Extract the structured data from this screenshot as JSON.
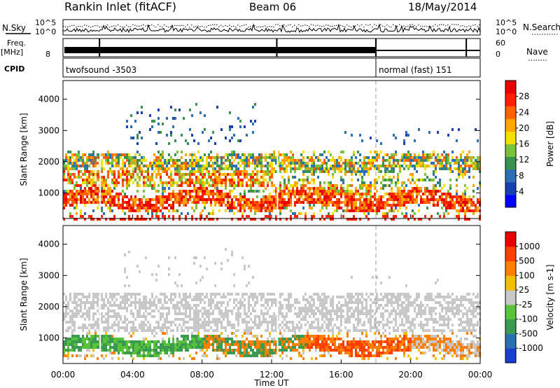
{
  "header": {
    "station": "Rankin Inlet (fitACF)",
    "beam": "Beam 06",
    "date": "18/May/2014"
  },
  "left_labels": {
    "nsky": "N.Sky",
    "freq_top": "Freq.",
    "freq_unit": "[MHz]",
    "cpid": "CPID"
  },
  "right_labels": {
    "nsearch": "N.Search",
    "nave": "Nave"
  },
  "noise_axis": {
    "left_top": "10^5",
    "left_bottom": "10^0",
    "right_top": "10^5",
    "right_bottom": "10^0"
  },
  "freq_axis": {
    "left_tick": "8",
    "right_top": "60",
    "right_bottom": "0"
  },
  "cpid_blocks": [
    {
      "label": "twofsound -3503",
      "start_hour": 0,
      "end_hour": 18
    },
    {
      "label": "normal (fast) 151",
      "start_hour": 18,
      "end_hour": 24
    }
  ],
  "chart_data": [
    {
      "type": "heatmap",
      "name": "power",
      "ylabel": "Slant Range [km]",
      "yticks": [
        1000,
        2000,
        3000,
        4000
      ],
      "ylim": [
        180,
        4600
      ],
      "xlim": [
        0,
        24
      ],
      "colorbar": {
        "label": "Power [dB]",
        "ticks": [
          "4",
          "8",
          "12",
          "16",
          "20",
          "24",
          "28"
        ],
        "colors": [
          "#0000ff",
          "#1a3fb0",
          "#2c6fb4",
          "#3a9250",
          "#7ac23a",
          "#f2e000",
          "#ffa500",
          "#ff6000",
          "#ff2000",
          "#e60000"
        ]
      },
      "bands": [
        {
          "from_hour": 0,
          "to_hour": 24,
          "range_low": 600,
          "range_high": 1000,
          "level": "high"
        },
        {
          "from_hour": 0,
          "to_hour": 12,
          "range_low": 1100,
          "range_high": 1800,
          "level": "high"
        },
        {
          "from_hour": 0,
          "to_hour": 24,
          "range_low": 1700,
          "range_high": 2300,
          "level": "medium"
        },
        {
          "from_hour": 4,
          "to_hour": 12,
          "range_low": 2800,
          "range_high": 3800,
          "level": "low"
        }
      ]
    },
    {
      "type": "heatmap",
      "name": "velocity",
      "ylabel": "Slant Range [km]",
      "yticks": [
        1000,
        2000,
        3000,
        4000
      ],
      "ylim": [
        180,
        4600
      ],
      "xlim": [
        0,
        24
      ],
      "colorbar": {
        "label": "Velocity [m s-1]",
        "ticks": [
          "1000",
          "500",
          "100",
          "25",
          "-25",
          "-100",
          "-500",
          "-1000"
        ],
        "colors": [
          "#1a3fd0",
          "#2a6fb0",
          "#3a9a50",
          "#58c33a",
          "#c8c8c8",
          "#f0c000",
          "#ff8000",
          "#ff4000",
          "#e60000"
        ]
      },
      "bands": [
        {
          "from_hour": 0,
          "to_hour": 8,
          "range_low": 600,
          "range_high": 1000,
          "kind": "toward"
        },
        {
          "from_hour": 8,
          "to_hour": 20,
          "range_low": 600,
          "range_high": 1200,
          "kind": "away"
        },
        {
          "from_hour": 0,
          "to_hour": 24,
          "range_low": 1500,
          "range_high": 2500,
          "kind": "ground"
        }
      ]
    }
  ],
  "x_axis": {
    "label": "Time UT",
    "ticks": [
      "00:00",
      "04:00",
      "08:00",
      "12:00",
      "16:00",
      "20:00",
      "00:00"
    ]
  }
}
